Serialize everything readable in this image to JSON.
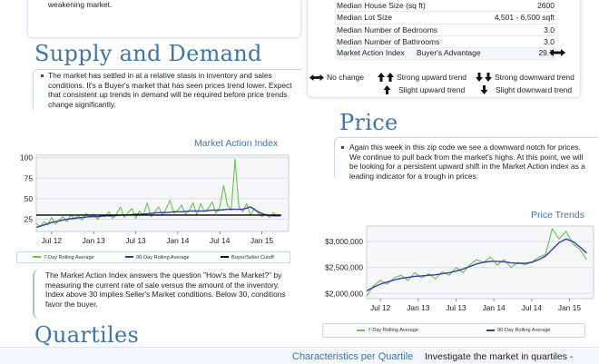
{
  "intro_tail": "weakening market.",
  "supply": {
    "title": "Supply and Demand",
    "text": "The market has settled in at a relative stasis in inventory and sales conditions. It's a Buyer's market that has seen prices trend lower. Expect that consistent up trends in demand will be required before price trends change significantly."
  },
  "stats": {
    "rows": [
      {
        "label": "Median House Size (sq ft)",
        "value": "2600"
      },
      {
        "label": "Median Lot Size",
        "value": "4,501 - 6,500 sqft"
      },
      {
        "label": "Median Number of Bedrooms",
        "value": "3.0"
      },
      {
        "label": "Median Number of Bathrooms",
        "value": "3.0"
      }
    ],
    "mai": {
      "label": "Market Action Index",
      "condition": "Buyer's Advantage",
      "value": "29.7",
      "arrow": "left-right-arrow-icon"
    }
  },
  "trend_legend": {
    "no_change": "No change",
    "strong_up": "Strong upward trend",
    "strong_down": "Strong downward trend",
    "slight_up": "Slight upward trend",
    "slight_down": "Slight downward trend"
  },
  "price": {
    "title": "Price",
    "text": "Again this week in this zip code we see a downward notch for prices. We continue to pull back from the market's highs. At this point, we will be looking for a persistent upward shift in the Market Action index as a leading indicator for a trough in prices."
  },
  "mai_chart": {
    "title": "Market Action Index",
    "legend": [
      "7-Day Rolling Average",
      "90-Day Rolling Average",
      "Buyer/Seller Cutoff"
    ]
  },
  "mai_note": "The Market Action Index answers the question \"How's the Market?\" by measuring the current rate of sale versus the amount of the inventory.  Index above 30 implies Seller's Market conditions. Below 30, conditions favor the buyer.",
  "price_chart": {
    "title": "Price Trends",
    "legend": [
      "7-Day Rolling Average",
      "90-Day Rolling Average"
    ]
  },
  "quartiles": {
    "title": "Quartiles",
    "characteristics": "Characteristics per Quartile",
    "investigate": "Investigate the market in quartiles -"
  },
  "chart_data": [
    {
      "type": "line",
      "title": "Market Action Index",
      "x_ticks": [
        "Jul 12",
        "Jan 13",
        "Jul 13",
        "Jan 14",
        "Jul 14",
        "Jan 15"
      ],
      "y_ticks": [
        25,
        50,
        75,
        100
      ],
      "ylim": [
        10,
        103
      ],
      "xlim": [
        0,
        33
      ],
      "series": [
        {
          "name": "7-Day Rolling Average",
          "color": "#6cc24a",
          "x": [
            0,
            0.5,
            1,
            1.5,
            2,
            2.5,
            3,
            3.5,
            4,
            4.5,
            5,
            5.5,
            6,
            6.5,
            7,
            7.5,
            8,
            8.5,
            9,
            9.5,
            10,
            10.5,
            11,
            11.5,
            12,
            12.5,
            13,
            13.5,
            14,
            14.5,
            15,
            15.5,
            16,
            16.5,
            17,
            17.5,
            18,
            18.5,
            19,
            19.5,
            20,
            20.5,
            21,
            21.5,
            22,
            22.5,
            23,
            23.5,
            24,
            24.5,
            25,
            25.5,
            26,
            26.5,
            27,
            27.5,
            28,
            28.5,
            29,
            29.5,
            30,
            30.5,
            31,
            31.5,
            32
          ],
          "y": [
            20,
            16,
            22,
            18,
            27,
            19,
            24,
            28,
            22,
            30,
            26,
            29,
            24,
            32,
            27,
            31,
            25,
            30,
            28,
            34,
            26,
            31,
            40,
            27,
            33,
            38,
            26,
            35,
            30,
            45,
            28,
            34,
            40,
            30,
            38,
            48,
            32,
            36,
            42,
            31,
            35,
            45,
            30,
            44,
            34,
            38,
            46,
            32,
            40,
            66,
            42,
            36,
            98,
            40,
            34,
            44,
            30,
            38,
            33,
            28,
            31,
            27,
            33,
            29,
            30
          ]
        },
        {
          "name": "90-Day Rolling Average",
          "color": "#3a3aa8",
          "x": [
            0,
            1,
            2,
            3,
            4,
            5,
            6,
            7,
            8,
            9,
            10,
            11,
            12,
            13,
            14,
            15,
            16,
            17,
            18,
            19,
            20,
            21,
            22,
            23,
            24,
            25,
            26,
            27,
            28,
            29,
            30,
            31,
            32
          ],
          "y": [
            15,
            18,
            21,
            23,
            25,
            26,
            27,
            28,
            28,
            29,
            29,
            30,
            30,
            31,
            31,
            32,
            33,
            33,
            34,
            34,
            35,
            35,
            35,
            36,
            36,
            37,
            37,
            37,
            40,
            34,
            30,
            29,
            29
          ]
        },
        {
          "name": "Buyer/Seller Cutoff",
          "color": "#000000",
          "x": [
            0,
            32
          ],
          "y": [
            30,
            30
          ]
        }
      ]
    },
    {
      "type": "line",
      "title": "Price Trends",
      "x_ticks": [
        "Jul 12",
        "Jan 13",
        "Jul 13",
        "Jan 14",
        "Jul 14",
        "Jan 15"
      ],
      "y_ticks": [
        "$2,000,000",
        "$2,500,000",
        "$3,000,000"
      ],
      "ylim": [
        1900000,
        3300000
      ],
      "xlim": [
        0,
        33
      ],
      "series": [
        {
          "name": "7-Day Rolling Average",
          "color": "#6cc24a",
          "x": [
            0,
            1,
            2,
            3,
            4,
            5,
            6,
            7,
            8,
            9,
            10,
            11,
            12,
            13,
            14,
            15,
            16,
            17,
            18,
            19,
            20,
            21,
            22,
            23,
            24,
            25,
            26,
            27,
            28,
            29,
            30,
            31,
            32
          ],
          "y": [
            1950000,
            2150000,
            2250000,
            2180000,
            2300000,
            2350000,
            2250000,
            2400000,
            2300000,
            2380000,
            2280000,
            2420000,
            2350000,
            2500000,
            2400000,
            2550000,
            2650000,
            2600000,
            2700000,
            2550000,
            2650000,
            2500000,
            2600000,
            2550000,
            2600000,
            2700000,
            2750000,
            3250000,
            3050000,
            3200000,
            2950000,
            2850000,
            2650000
          ]
        },
        {
          "name": "90-Day Rolling Average",
          "color": "#3a3aa8",
          "x": [
            0,
            1,
            2,
            3,
            4,
            5,
            6,
            7,
            8,
            9,
            10,
            11,
            12,
            13,
            14,
            15,
            16,
            17,
            18,
            19,
            20,
            21,
            22,
            23,
            24,
            25,
            26,
            27,
            28,
            29,
            30,
            31,
            32
          ],
          "y": [
            2050000,
            2120000,
            2180000,
            2220000,
            2260000,
            2290000,
            2310000,
            2330000,
            2340000,
            2350000,
            2360000,
            2380000,
            2400000,
            2430000,
            2470000,
            2520000,
            2570000,
            2600000,
            2620000,
            2620000,
            2610000,
            2590000,
            2580000,
            2580000,
            2600000,
            2650000,
            2720000,
            2850000,
            2980000,
            3050000,
            3000000,
            2900000,
            2780000
          ]
        }
      ]
    }
  ]
}
